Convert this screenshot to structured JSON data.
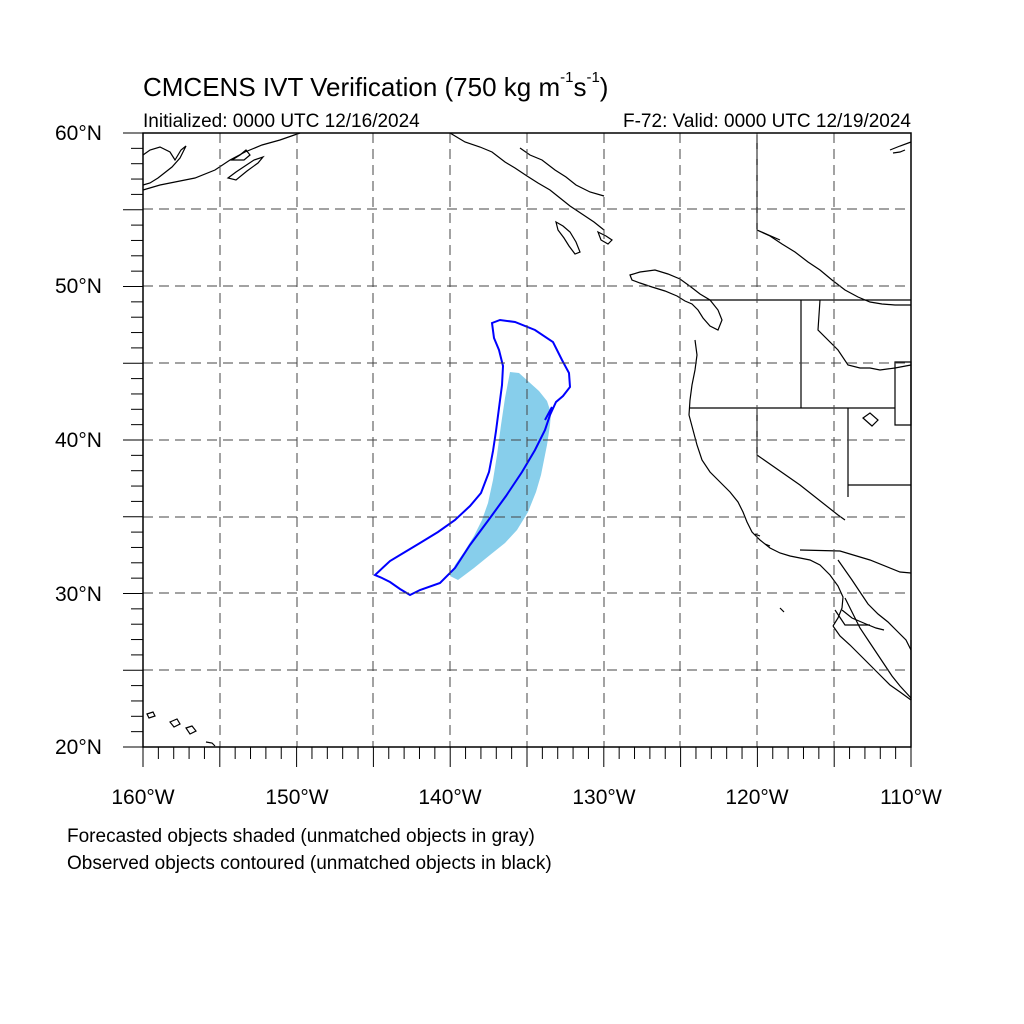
{
  "title_main": "CMCENS IVT Verification (750 kg m",
  "title_sup1": "-1",
  "title_mid": "s",
  "title_sup2": "-1",
  "title_end": ")",
  "initialized": "Initialized: 0000 UTC 12/16/2024",
  "valid": "F-72: Valid: 0000 UTC 12/19/2024",
  "lat_labels": [
    "60°N",
    "50°N",
    "40°N",
    "30°N",
    "20°N"
  ],
  "lon_labels": [
    "160°W",
    "150°W",
    "140°W",
    "130°W",
    "120°W",
    "110°W"
  ],
  "legend": {
    "forecast_note": "Forecasted objects shaded (unmatched objects in gray)",
    "observed_note": "Observed objects contoured (unmatched objects in black)"
  },
  "colors": {
    "forecast_fill": "#87ceeb",
    "observed_contour": "#0000ff",
    "coastline": "#000000",
    "grid": "#444444"
  },
  "map_extent": {
    "lon_min": -160,
    "lon_max": -110,
    "lat_min": 20,
    "lat_max": 60
  }
}
